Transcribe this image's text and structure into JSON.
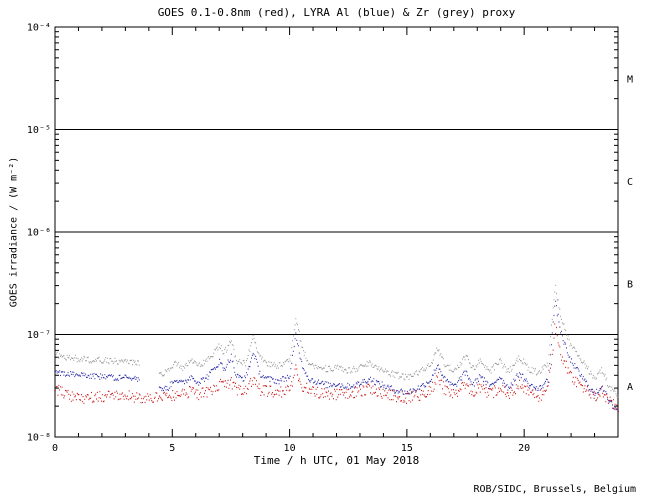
{
  "chart_data": {
    "type": "scatter",
    "title": "GOES 0.1-0.8nm (red), LYRA Al (blue) & Zr (grey) proxy",
    "xlabel": "Time / h UTC, 01 May 2018",
    "ylabel": "GOES irradiance / (W m⁻²)",
    "footer": "ROB/SIDC, Brussels, Belgium",
    "xlim": [
      0,
      24
    ],
    "ylim_exp": [
      -8,
      -4
    ],
    "x_minor_step": 1,
    "x_ticks": [
      {
        "t": 0,
        "label": "0"
      },
      {
        "t": 5,
        "label": "5"
      },
      {
        "t": 10,
        "label": "10"
      },
      {
        "t": 15,
        "label": "15"
      },
      {
        "t": 20,
        "label": "20"
      }
    ],
    "y_ticks": [
      {
        "exp": -8,
        "label": "10⁻⁸"
      },
      {
        "exp": -7,
        "label": "10⁻⁷"
      },
      {
        "exp": -6,
        "label": "10⁻⁶"
      },
      {
        "exp": -5,
        "label": "10⁻⁵"
      },
      {
        "exp": -4,
        "label": "10⁻⁴"
      }
    ],
    "hlines_exp": [
      -7,
      -6,
      -5
    ],
    "flare_classes": [
      {
        "label": "M",
        "exp": -4.5
      },
      {
        "label": "C",
        "exp": -5.5
      },
      {
        "label": "B",
        "exp": -6.5
      },
      {
        "label": "A",
        "exp": -7.5
      }
    ],
    "samples_per_hour": 28,
    "series": [
      {
        "id": "goes_xray",
        "name": "GOES 0.1-0.8nm",
        "color": "#cc1111",
        "noise_dex": 0.055,
        "gaps": [],
        "points": [
          [
            0,
            2.9e-08
          ],
          [
            0.5,
            2.6e-08
          ],
          [
            1,
            2.4e-08
          ],
          [
            1.5,
            2.4e-08
          ],
          [
            2,
            2.5e-08
          ],
          [
            3,
            2.5e-08
          ],
          [
            4,
            2.4e-08
          ],
          [
            4.8,
            2.5e-08
          ],
          [
            5.4,
            2.6e-08
          ],
          [
            5.8,
            2.8e-08
          ],
          [
            6.1,
            2.6e-08
          ],
          [
            6.5,
            2.8e-08
          ],
          [
            7,
            3.2e-08
          ],
          [
            7.5,
            3.4e-08
          ],
          [
            7.7,
            2.9e-08
          ],
          [
            8.1,
            2.8e-08
          ],
          [
            8.45,
            3.7e-08
          ],
          [
            8.7,
            2.9e-08
          ],
          [
            9,
            2.8e-08
          ],
          [
            9.5,
            2.7e-08
          ],
          [
            10,
            2.9e-08
          ],
          [
            10.25,
            4.6e-08
          ],
          [
            10.5,
            3.1e-08
          ],
          [
            11.2,
            2.7e-08
          ],
          [
            12,
            2.6e-08
          ],
          [
            12.8,
            2.7e-08
          ],
          [
            13.4,
            3e-08
          ],
          [
            13.8,
            2.7e-08
          ],
          [
            14.4,
            2.5e-08
          ],
          [
            15,
            2.4e-08
          ],
          [
            15.6,
            2.6e-08
          ],
          [
            16,
            2.8e-08
          ],
          [
            16.3,
            3.9e-08
          ],
          [
            16.6,
            2.9e-08
          ],
          [
            17,
            2.6e-08
          ],
          [
            17.5,
            3.2e-08
          ],
          [
            17.8,
            2.7e-08
          ],
          [
            18.15,
            3e-08
          ],
          [
            18.5,
            2.6e-08
          ],
          [
            18.95,
            3e-08
          ],
          [
            19.3,
            2.6e-08
          ],
          [
            19.8,
            3.2e-08
          ],
          [
            20.2,
            2.7e-08
          ],
          [
            20.6,
            2.5e-08
          ],
          [
            21,
            2.8e-08
          ],
          [
            21.3,
            1.2e-07
          ],
          [
            21.55,
            6.5e-08
          ],
          [
            21.9,
            4.2e-08
          ],
          [
            22.3,
            3.3e-08
          ],
          [
            22.7,
            2.8e-08
          ],
          [
            23,
            2.4e-08
          ],
          [
            23.3,
            2.8e-08
          ],
          [
            23.6,
            2.2e-08
          ],
          [
            24,
            1.9e-08
          ]
        ]
      },
      {
        "id": "lyra_al",
        "name": "LYRA Al proxy",
        "color": "#2a2aa8",
        "noise_dex": 0.03,
        "gaps": [
          [
            3.6,
            4.4
          ]
        ],
        "points": [
          [
            0,
            4.3e-08
          ],
          [
            0.5,
            4.1e-08
          ],
          [
            1,
            4e-08
          ],
          [
            1.5,
            3.9e-08
          ],
          [
            2,
            3.9e-08
          ],
          [
            2.5,
            3.8e-08
          ],
          [
            3,
            3.8e-08
          ],
          [
            3.6,
            3.6e-08
          ],
          [
            4.4,
            2.9e-08
          ],
          [
            4.8,
            3e-08
          ],
          [
            5.1,
            3.7e-08
          ],
          [
            5.4,
            3.3e-08
          ],
          [
            5.8,
            3.9e-08
          ],
          [
            6.1,
            3.4e-08
          ],
          [
            6.5,
            3.9e-08
          ],
          [
            7,
            5.4e-08
          ],
          [
            7.2,
            4.6e-08
          ],
          [
            7.5,
            6.1e-08
          ],
          [
            7.7,
            3.9e-08
          ],
          [
            8.1,
            3.7e-08
          ],
          [
            8.45,
            6.8e-08
          ],
          [
            8.7,
            4.2e-08
          ],
          [
            9,
            3.7e-08
          ],
          [
            9.5,
            3.5e-08
          ],
          [
            10,
            3.9e-08
          ],
          [
            10.25,
            1e-07
          ],
          [
            10.5,
            5.2e-08
          ],
          [
            10.8,
            3.7e-08
          ],
          [
            11.2,
            3.4e-08
          ],
          [
            11.6,
            3.2e-08
          ],
          [
            12,
            3.3e-08
          ],
          [
            12.4,
            3.1e-08
          ],
          [
            12.8,
            3.2e-08
          ],
          [
            13.4,
            3.7e-08
          ],
          [
            13.8,
            3.3e-08
          ],
          [
            14.4,
            2.9e-08
          ],
          [
            15,
            2.7e-08
          ],
          [
            15.6,
            3.1e-08
          ],
          [
            16,
            3.6e-08
          ],
          [
            16.3,
            5.1e-08
          ],
          [
            16.6,
            3.6e-08
          ],
          [
            17,
            3.1e-08
          ],
          [
            17.5,
            4.3e-08
          ],
          [
            17.8,
            3.2e-08
          ],
          [
            18.15,
            4e-08
          ],
          [
            18.5,
            3e-08
          ],
          [
            18.95,
            3.9e-08
          ],
          [
            19.3,
            3e-08
          ],
          [
            19.8,
            4.2e-08
          ],
          [
            20.2,
            3.2e-08
          ],
          [
            20.6,
            2.9e-08
          ],
          [
            21,
            3.6e-08
          ],
          [
            21.3,
            2.1e-07
          ],
          [
            21.55,
            1.05e-07
          ],
          [
            21.9,
            5.9e-08
          ],
          [
            22.3,
            4.3e-08
          ],
          [
            22.7,
            3.2e-08
          ],
          [
            23,
            2.6e-08
          ],
          [
            23.3,
            3.2e-08
          ],
          [
            23.6,
            2.2e-08
          ],
          [
            24,
            1.8e-08
          ]
        ]
      },
      {
        "id": "lyra_zr",
        "name": "LYRA Zr proxy",
        "color": "#9a9a9a",
        "noise_dex": 0.03,
        "gaps": [
          [
            3.6,
            4.4
          ]
        ],
        "points": [
          [
            0,
            6.3e-08
          ],
          [
            0.5,
            6e-08
          ],
          [
            1,
            5.8e-08
          ],
          [
            1.5,
            5.6e-08
          ],
          [
            2,
            5.6e-08
          ],
          [
            2.5,
            5.5e-08
          ],
          [
            3,
            5.4e-08
          ],
          [
            3.6,
            5.2e-08
          ],
          [
            4.4,
            4.1e-08
          ],
          [
            4.8,
            4.3e-08
          ],
          [
            5.1,
            5.3e-08
          ],
          [
            5.4,
            4.7e-08
          ],
          [
            5.8,
            5.5e-08
          ],
          [
            6.1,
            4.9e-08
          ],
          [
            6.5,
            5.6e-08
          ],
          [
            7,
            7.8e-08
          ],
          [
            7.2,
            6.6e-08
          ],
          [
            7.5,
            8.8e-08
          ],
          [
            7.7,
            5.6e-08
          ],
          [
            8.1,
            5.2e-08
          ],
          [
            8.45,
            9.8e-08
          ],
          [
            8.7,
            6e-08
          ],
          [
            9,
            5.2e-08
          ],
          [
            9.5,
            5e-08
          ],
          [
            10,
            5.6e-08
          ],
          [
            10.25,
            1.5e-07
          ],
          [
            10.5,
            7.5e-08
          ],
          [
            10.8,
            5.2e-08
          ],
          [
            11.2,
            4.8e-08
          ],
          [
            11.6,
            4.6e-08
          ],
          [
            12,
            4.7e-08
          ],
          [
            12.4,
            4.4e-08
          ],
          [
            12.8,
            4.6e-08
          ],
          [
            13.4,
            5.3e-08
          ],
          [
            13.8,
            4.7e-08
          ],
          [
            14.4,
            4.1e-08
          ],
          [
            15,
            3.8e-08
          ],
          [
            15.6,
            4.4e-08
          ],
          [
            16,
            5.1e-08
          ],
          [
            16.3,
            7.3e-08
          ],
          [
            16.6,
            5.1e-08
          ],
          [
            17,
            4.4e-08
          ],
          [
            17.5,
            6.2e-08
          ],
          [
            17.8,
            4.6e-08
          ],
          [
            18.15,
            5.7e-08
          ],
          [
            18.5,
            4.3e-08
          ],
          [
            18.95,
            5.5e-08
          ],
          [
            19.3,
            4.3e-08
          ],
          [
            19.8,
            6e-08
          ],
          [
            20.2,
            4.6e-08
          ],
          [
            20.6,
            4.2e-08
          ],
          [
            21,
            5.2e-08
          ],
          [
            21.3,
            3e-07
          ],
          [
            21.55,
            1.5e-07
          ],
          [
            21.9,
            8.5e-08
          ],
          [
            22.3,
            6.2e-08
          ],
          [
            22.7,
            4.6e-08
          ],
          [
            23,
            3.7e-08
          ],
          [
            23.3,
            4.6e-08
          ],
          [
            23.6,
            3.1e-08
          ],
          [
            24,
            2.6e-08
          ]
        ]
      }
    ]
  }
}
